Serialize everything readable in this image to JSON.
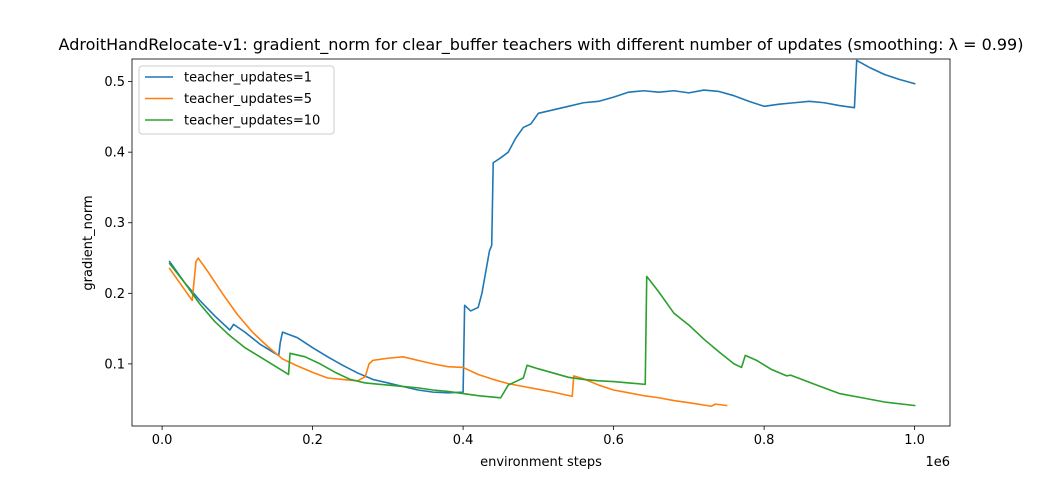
{
  "chart_data": {
    "type": "line",
    "title": "AdroitHandRelocate-v1: gradient_norm for clear_buffer teachers with different number of updates (smoothing: λ = 0.99)",
    "xlabel": "environment steps",
    "ylabel": "gradient_norm",
    "x_offset_text": "1e6",
    "xlim": [
      -0.04,
      1.047
    ],
    "ylim": [
      0.012,
      0.532
    ],
    "xticks": [
      0.0,
      0.2,
      0.4,
      0.6,
      0.8,
      1.0
    ],
    "xtick_labels": [
      "0.0",
      "0.2",
      "0.4",
      "0.6",
      "0.8",
      "1.0"
    ],
    "yticks": [
      0.1,
      0.2,
      0.3,
      0.4,
      0.5
    ],
    "ytick_labels": [
      "0.1",
      "0.2",
      "0.3",
      "0.4",
      "0.5"
    ],
    "grid": false,
    "legend_position": "top-left",
    "series": [
      {
        "name": "teacher_updates=1",
        "color": "#1f77b4",
        "points": [
          [
            0.01,
            0.245
          ],
          [
            0.03,
            0.215
          ],
          [
            0.05,
            0.19
          ],
          [
            0.07,
            0.168
          ],
          [
            0.09,
            0.148
          ],
          [
            0.095,
            0.156
          ],
          [
            0.11,
            0.145
          ],
          [
            0.13,
            0.128
          ],
          [
            0.15,
            0.115
          ],
          [
            0.155,
            0.112
          ],
          [
            0.157,
            0.13
          ],
          [
            0.16,
            0.145
          ],
          [
            0.18,
            0.137
          ],
          [
            0.2,
            0.123
          ],
          [
            0.22,
            0.11
          ],
          [
            0.24,
            0.098
          ],
          [
            0.26,
            0.087
          ],
          [
            0.28,
            0.078
          ],
          [
            0.3,
            0.073
          ],
          [
            0.32,
            0.068
          ],
          [
            0.34,
            0.063
          ],
          [
            0.36,
            0.06
          ],
          [
            0.38,
            0.059
          ],
          [
            0.4,
            0.06
          ],
          [
            0.402,
            0.183
          ],
          [
            0.41,
            0.175
          ],
          [
            0.42,
            0.18
          ],
          [
            0.425,
            0.2
          ],
          [
            0.43,
            0.23
          ],
          [
            0.435,
            0.26
          ],
          [
            0.438,
            0.268
          ],
          [
            0.44,
            0.385
          ],
          [
            0.45,
            0.392
          ],
          [
            0.46,
            0.4
          ],
          [
            0.47,
            0.42
          ],
          [
            0.48,
            0.435
          ],
          [
            0.49,
            0.44
          ],
          [
            0.5,
            0.455
          ],
          [
            0.52,
            0.46
          ],
          [
            0.54,
            0.465
          ],
          [
            0.56,
            0.47
          ],
          [
            0.58,
            0.472
          ],
          [
            0.6,
            0.478
          ],
          [
            0.62,
            0.485
          ],
          [
            0.64,
            0.487
          ],
          [
            0.66,
            0.485
          ],
          [
            0.68,
            0.487
          ],
          [
            0.7,
            0.484
          ],
          [
            0.72,
            0.488
          ],
          [
            0.74,
            0.486
          ],
          [
            0.76,
            0.48
          ],
          [
            0.78,
            0.472
          ],
          [
            0.8,
            0.465
          ],
          [
            0.82,
            0.468
          ],
          [
            0.84,
            0.47
          ],
          [
            0.86,
            0.472
          ],
          [
            0.88,
            0.47
          ],
          [
            0.9,
            0.466
          ],
          [
            0.92,
            0.463
          ],
          [
            0.923,
            0.53
          ],
          [
            0.94,
            0.52
          ],
          [
            0.96,
            0.51
          ],
          [
            0.98,
            0.503
          ],
          [
            1.0,
            0.497
          ]
        ]
      },
      {
        "name": "teacher_updates=5",
        "color": "#ff7f0e",
        "points": [
          [
            0.01,
            0.235
          ],
          [
            0.03,
            0.205
          ],
          [
            0.04,
            0.19
          ],
          [
            0.045,
            0.245
          ],
          [
            0.048,
            0.25
          ],
          [
            0.06,
            0.232
          ],
          [
            0.08,
            0.2
          ],
          [
            0.1,
            0.17
          ],
          [
            0.12,
            0.145
          ],
          [
            0.14,
            0.125
          ],
          [
            0.16,
            0.107
          ],
          [
            0.18,
            0.097
          ],
          [
            0.2,
            0.088
          ],
          [
            0.22,
            0.08
          ],
          [
            0.24,
            0.078
          ],
          [
            0.26,
            0.076
          ],
          [
            0.27,
            0.082
          ],
          [
            0.275,
            0.1
          ],
          [
            0.28,
            0.105
          ],
          [
            0.3,
            0.108
          ],
          [
            0.32,
            0.11
          ],
          [
            0.34,
            0.105
          ],
          [
            0.36,
            0.1
          ],
          [
            0.38,
            0.096
          ],
          [
            0.4,
            0.095
          ],
          [
            0.42,
            0.085
          ],
          [
            0.44,
            0.078
          ],
          [
            0.46,
            0.072
          ],
          [
            0.48,
            0.068
          ],
          [
            0.5,
            0.064
          ],
          [
            0.52,
            0.06
          ],
          [
            0.545,
            0.054
          ],
          [
            0.547,
            0.083
          ],
          [
            0.56,
            0.079
          ],
          [
            0.58,
            0.07
          ],
          [
            0.6,
            0.063
          ],
          [
            0.62,
            0.059
          ],
          [
            0.64,
            0.055
          ],
          [
            0.66,
            0.052
          ],
          [
            0.68,
            0.048
          ],
          [
            0.7,
            0.045
          ],
          [
            0.73,
            0.04
          ],
          [
            0.735,
            0.043
          ],
          [
            0.75,
            0.041
          ]
        ]
      },
      {
        "name": "teacher_updates=10",
        "color": "#2ca02c",
        "points": [
          [
            0.01,
            0.242
          ],
          [
            0.03,
            0.215
          ],
          [
            0.05,
            0.185
          ],
          [
            0.07,
            0.16
          ],
          [
            0.09,
            0.14
          ],
          [
            0.11,
            0.123
          ],
          [
            0.13,
            0.11
          ],
          [
            0.15,
            0.097
          ],
          [
            0.168,
            0.085
          ],
          [
            0.17,
            0.115
          ],
          [
            0.19,
            0.11
          ],
          [
            0.21,
            0.1
          ],
          [
            0.23,
            0.088
          ],
          [
            0.25,
            0.078
          ],
          [
            0.27,
            0.073
          ],
          [
            0.3,
            0.07
          ],
          [
            0.32,
            0.068
          ],
          [
            0.34,
            0.066
          ],
          [
            0.36,
            0.063
          ],
          [
            0.38,
            0.061
          ],
          [
            0.4,
            0.058
          ],
          [
            0.42,
            0.055
          ],
          [
            0.45,
            0.052
          ],
          [
            0.46,
            0.07
          ],
          [
            0.47,
            0.075
          ],
          [
            0.48,
            0.08
          ],
          [
            0.485,
            0.098
          ],
          [
            0.5,
            0.093
          ],
          [
            0.52,
            0.087
          ],
          [
            0.54,
            0.081
          ],
          [
            0.56,
            0.078
          ],
          [
            0.58,
            0.076
          ],
          [
            0.6,
            0.075
          ],
          [
            0.62,
            0.073
          ],
          [
            0.642,
            0.071
          ],
          [
            0.644,
            0.224
          ],
          [
            0.66,
            0.202
          ],
          [
            0.68,
            0.172
          ],
          [
            0.7,
            0.155
          ],
          [
            0.72,
            0.135
          ],
          [
            0.74,
            0.117
          ],
          [
            0.76,
            0.1
          ],
          [
            0.77,
            0.095
          ],
          [
            0.775,
            0.112
          ],
          [
            0.79,
            0.105
          ],
          [
            0.81,
            0.092
          ],
          [
            0.83,
            0.083
          ],
          [
            0.835,
            0.084
          ],
          [
            0.85,
            0.078
          ],
          [
            0.87,
            0.07
          ],
          [
            0.9,
            0.058
          ],
          [
            0.93,
            0.052
          ],
          [
            0.96,
            0.046
          ],
          [
            1.0,
            0.041
          ]
        ]
      }
    ]
  }
}
